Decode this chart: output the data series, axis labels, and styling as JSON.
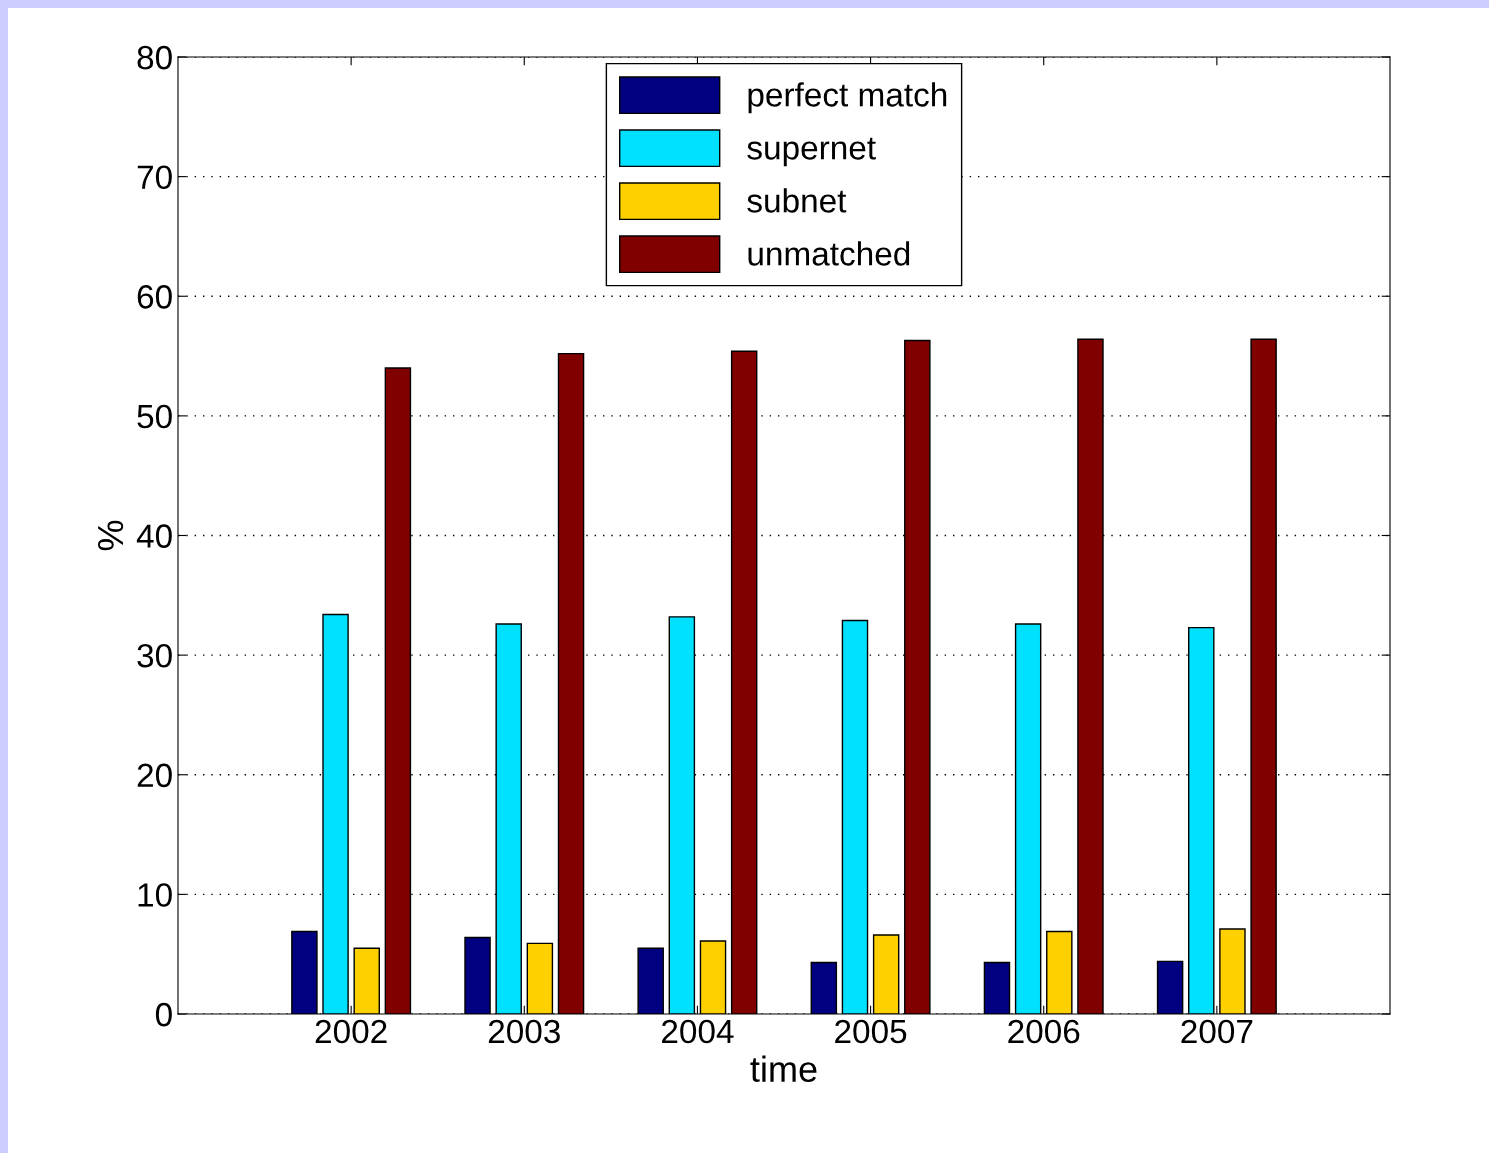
{
  "chart_data": {
    "type": "bar",
    "xlabel": "time",
    "ylabel": "%",
    "categories": [
      "2002",
      "2003",
      "2004",
      "2005",
      "2006",
      "2007"
    ],
    "series": [
      {
        "name": "perfect match",
        "color": "#000080",
        "values": [
          6.9,
          6.4,
          5.5,
          4.3,
          4.3,
          4.4
        ]
      },
      {
        "name": "supernet",
        "color": "#00e0ff",
        "values": [
          33.4,
          32.6,
          33.2,
          32.9,
          32.6,
          32.3
        ]
      },
      {
        "name": "subnet",
        "color": "#ffd000",
        "values": [
          5.5,
          5.9,
          6.1,
          6.6,
          6.9,
          7.1
        ]
      },
      {
        "name": "unmatched",
        "color": "#800000",
        "values": [
          54.0,
          55.2,
          55.4,
          56.3,
          56.4,
          56.4
        ]
      }
    ],
    "ylim": [
      0,
      80
    ],
    "yticks": [
      0,
      10,
      20,
      30,
      40,
      50,
      60,
      70,
      80
    ],
    "grid": "y",
    "legend": "top"
  }
}
